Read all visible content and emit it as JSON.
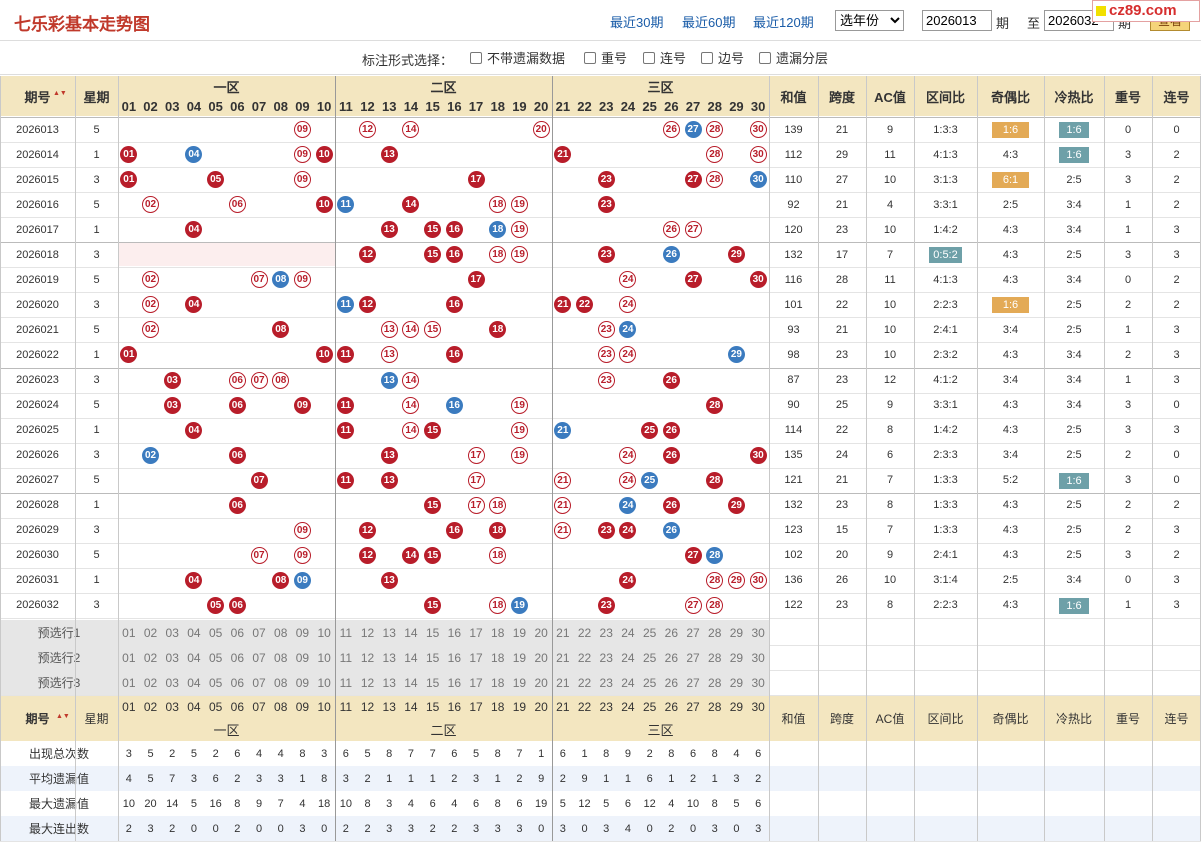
{
  "header": {
    "title": "七乐彩基本走势图",
    "links": [
      "最近30期",
      "最近60期",
      "最近120期"
    ],
    "year_select": "选年份",
    "from_period": "2026013",
    "from_unit": "期",
    "to_label": "至",
    "to_period": "2026032",
    "to_unit": "期",
    "query_button": "查看",
    "logo": "cz89.com"
  },
  "options": {
    "label": "标注形式选择：",
    "items": [
      "不带遗漏数据",
      "重号",
      "连号",
      "边号",
      "遗漏分层"
    ]
  },
  "zones": [
    "一区",
    "二区",
    "三区"
  ],
  "headers": {
    "period": "期号",
    "weekday": "星期",
    "sum": "和值",
    "span": "跨度",
    "ac": "AC值",
    "zone_ratio": "区间比",
    "odd_even": "奇偶比",
    "hot_cold": "冷热比",
    "repeat": "重号",
    "consecutive": "连号"
  },
  "numbers": [
    "01",
    "02",
    "03",
    "04",
    "05",
    "06",
    "07",
    "08",
    "09",
    "10",
    "11",
    "12",
    "13",
    "14",
    "15",
    "16",
    "17",
    "18",
    "19",
    "20",
    "21",
    "22",
    "23",
    "24",
    "25",
    "26",
    "27",
    "28",
    "29",
    "30"
  ],
  "rows": [
    {
      "p": "2026013",
      "w": "5",
      "red": [
        9,
        12,
        14,
        20,
        26,
        28,
        30
      ],
      "blue": [
        27
      ],
      "ring": [
        9,
        12,
        14,
        20,
        26,
        28,
        30
      ],
      "sum": "139",
      "span": "21",
      "ac": "9",
      "zr": "1:3:3",
      "oe": "1:6",
      "hc": "1:6",
      "rep": "0",
      "con": "0",
      "oe_hl": "orange",
      "hc_hl": "teal"
    },
    {
      "p": "2026014",
      "w": "1",
      "red": [
        1,
        9,
        10,
        13,
        21,
        28,
        30
      ],
      "blue": [
        4
      ],
      "ring": [
        9,
        28,
        30
      ],
      "sum": "112",
      "span": "29",
      "ac": "11",
      "zr": "4:1:3",
      "oe": "4:3",
      "hc": "1:6",
      "rep": "3",
      "con": "2",
      "hc_hl": "teal"
    },
    {
      "p": "2026015",
      "w": "3",
      "red": [
        1,
        5,
        9,
        17,
        23,
        27,
        28
      ],
      "blue": [
        30
      ],
      "ring": [
        9,
        28
      ],
      "sum": "110",
      "span": "27",
      "ac": "10",
      "zr": "3:1:3",
      "oe": "6:1",
      "hc": "2:5",
      "rep": "3",
      "con": "2",
      "oe_hl": "orange"
    },
    {
      "p": "2026016",
      "w": "5",
      "red": [
        2,
        6,
        10,
        14,
        18,
        19,
        23
      ],
      "blue": [
        11
      ],
      "ring": [
        2,
        6,
        18,
        19
      ],
      "sum": "92",
      "span": "21",
      "ac": "4",
      "zr": "3:3:1",
      "oe": "2:5",
      "hc": "3:4",
      "rep": "1",
      "con": "2"
    },
    {
      "p": "2026017",
      "w": "1",
      "red": [
        4,
        13,
        15,
        16,
        19,
        26,
        27
      ],
      "blue": [
        18
      ],
      "ring": [
        19,
        26,
        27
      ],
      "sum": "120",
      "span": "23",
      "ac": "10",
      "zr": "1:4:2",
      "oe": "4:3",
      "hc": "3:4",
      "rep": "1",
      "con": "3"
    },
    {
      "p": "2026018",
      "w": "3",
      "red": [
        12,
        15,
        16,
        18,
        19,
        23,
        29
      ],
      "blue": [
        26
      ],
      "ring": [
        18,
        19
      ],
      "sum": "132",
      "span": "17",
      "ac": "7",
      "zr": "0:5:2",
      "oe": "4:3",
      "hc": "2:5",
      "rep": "3",
      "con": "3",
      "zr_hl": "teal"
    },
    {
      "p": "2026019",
      "w": "5",
      "red": [
        2,
        7,
        9,
        17,
        24,
        27,
        30
      ],
      "blue": [
        8
      ],
      "ring": [
        2,
        7,
        9,
        24
      ],
      "sum": "116",
      "span": "28",
      "ac": "11",
      "zr": "4:1:3",
      "oe": "4:3",
      "hc": "3:4",
      "rep": "0",
      "con": "2"
    },
    {
      "p": "2026020",
      "w": "3",
      "red": [
        2,
        4,
        12,
        16,
        21,
        22,
        24
      ],
      "blue": [
        11
      ],
      "ring": [
        2,
        24
      ],
      "sum": "101",
      "span": "22",
      "ac": "10",
      "zr": "2:2:3",
      "oe": "1:6",
      "hc": "2:5",
      "rep": "2",
      "con": "2",
      "oe_hl": "orange"
    },
    {
      "p": "2026021",
      "w": "5",
      "red": [
        2,
        8,
        13,
        14,
        15,
        18,
        23
      ],
      "blue": [
        24
      ],
      "ring": [
        2,
        13,
        14,
        15,
        23
      ],
      "sum": "93",
      "span": "21",
      "ac": "10",
      "zr": "2:4:1",
      "oe": "3:4",
      "hc": "2:5",
      "rep": "1",
      "con": "3"
    },
    {
      "p": "2026022",
      "w": "1",
      "red": [
        1,
        10,
        11,
        13,
        16,
        23,
        24
      ],
      "blue": [
        29
      ],
      "ring": [
        13,
        23,
        24
      ],
      "sum": "98",
      "span": "23",
      "ac": "10",
      "zr": "2:3:2",
      "oe": "4:3",
      "hc": "3:4",
      "rep": "2",
      "con": "3"
    },
    {
      "p": "2026023",
      "w": "3",
      "red": [
        3,
        6,
        7,
        8,
        14,
        23,
        26
      ],
      "blue": [
        13
      ],
      "ring": [
        6,
        7,
        8,
        14,
        23
      ],
      "sum": "87",
      "span": "23",
      "ac": "12",
      "zr": "4:1:2",
      "oe": "3:4",
      "hc": "3:4",
      "rep": "1",
      "con": "3"
    },
    {
      "p": "2026024",
      "w": "5",
      "red": [
        3,
        6,
        9,
        11,
        14,
        19,
        28
      ],
      "blue": [
        16
      ],
      "ring": [
        14,
        19
      ],
      "sum": "90",
      "span": "25",
      "ac": "9",
      "zr": "3:3:1",
      "oe": "4:3",
      "hc": "3:4",
      "rep": "3",
      "con": "0"
    },
    {
      "p": "2026025",
      "w": "1",
      "red": [
        4,
        11,
        14,
        15,
        19,
        25,
        26
      ],
      "blue": [
        21
      ],
      "ring": [
        14,
        19
      ],
      "sum": "114",
      "span": "22",
      "ac": "8",
      "zr": "1:4:2",
      "oe": "4:3",
      "hc": "2:5",
      "rep": "3",
      "con": "3"
    },
    {
      "p": "2026026",
      "w": "3",
      "red": [
        6,
        13,
        17,
        19,
        24,
        26,
        30
      ],
      "blue": [
        2
      ],
      "ring": [
        17,
        19,
        24
      ],
      "sum": "135",
      "span": "24",
      "ac": "6",
      "zr": "2:3:3",
      "oe": "3:4",
      "hc": "2:5",
      "rep": "2",
      "con": "0"
    },
    {
      "p": "2026027",
      "w": "5",
      "red": [
        7,
        11,
        13,
        17,
        21,
        24,
        28
      ],
      "blue": [
        25
      ],
      "ring": [
        17,
        21,
        24
      ],
      "sum": "121",
      "span": "21",
      "ac": "7",
      "zr": "1:3:3",
      "oe": "5:2",
      "hc": "1:6",
      "rep": "3",
      "con": "0",
      "hc_hl": "teal"
    },
    {
      "p": "2026028",
      "w": "1",
      "red": [
        6,
        15,
        17,
        18,
        21,
        26,
        29
      ],
      "blue": [
        24
      ],
      "ring": [
        17,
        18,
        21
      ],
      "sum": "132",
      "span": "23",
      "ac": "8",
      "zr": "1:3:3",
      "oe": "4:3",
      "hc": "2:5",
      "rep": "2",
      "con": "2"
    },
    {
      "p": "2026029",
      "w": "3",
      "red": [
        9,
        12,
        16,
        18,
        21,
        23,
        24
      ],
      "blue": [
        26
      ],
      "ring": [
        9,
        21
      ],
      "sum": "123",
      "span": "15",
      "ac": "7",
      "zr": "1:3:3",
      "oe": "4:3",
      "hc": "2:5",
      "rep": "2",
      "con": "3"
    },
    {
      "p": "2026030",
      "w": "5",
      "red": [
        7,
        9,
        12,
        14,
        15,
        18,
        27
      ],
      "blue": [
        28
      ],
      "ring": [
        7,
        9,
        18
      ],
      "sum": "102",
      "span": "20",
      "ac": "9",
      "zr": "2:4:1",
      "oe": "4:3",
      "hc": "2:5",
      "rep": "3",
      "con": "2"
    },
    {
      "p": "2026031",
      "w": "1",
      "red": [
        4,
        8,
        13,
        24,
        28,
        29,
        30
      ],
      "blue": [
        9
      ],
      "ring": [
        28,
        29,
        30
      ],
      "sum": "136",
      "span": "26",
      "ac": "10",
      "zr": "3:1:4",
      "oe": "2:5",
      "hc": "3:4",
      "rep": "0",
      "con": "3"
    },
    {
      "p": "2026032",
      "w": "3",
      "red": [
        5,
        6,
        15,
        18,
        23,
        27,
        28
      ],
      "blue": [
        19
      ],
      "ring": [
        18,
        27,
        28
      ],
      "sum": "122",
      "span": "23",
      "ac": "8",
      "zr": "2:2:3",
      "oe": "4:3",
      "hc": "1:6",
      "rep": "1",
      "con": "3",
      "hc_hl": "teal"
    }
  ],
  "preselect": [
    "预选行1",
    "预选行2",
    "预选行3"
  ],
  "stats": [
    {
      "label": "出现总次数",
      "vals": [
        "3",
        "5",
        "2",
        "5",
        "2",
        "6",
        "4",
        "4",
        "8",
        "3",
        "6",
        "5",
        "8",
        "7",
        "7",
        "6",
        "5",
        "8",
        "7",
        "1",
        "6",
        "1",
        "8",
        "9",
        "2",
        "8",
        "6",
        "8",
        "4",
        "6"
      ]
    },
    {
      "label": "平均遗漏值",
      "vals": [
        "4",
        "5",
        "7",
        "3",
        "6",
        "2",
        "3",
        "3",
        "1",
        "8",
        "3",
        "2",
        "1",
        "1",
        "1",
        "2",
        "3",
        "1",
        "2",
        "9",
        "2",
        "9",
        "1",
        "1",
        "6",
        "1",
        "2",
        "1",
        "3",
        "2"
      ]
    },
    {
      "label": "最大遗漏值",
      "vals": [
        "10",
        "20",
        "14",
        "5",
        "16",
        "8",
        "9",
        "7",
        "4",
        "18",
        "10",
        "8",
        "3",
        "4",
        "6",
        "4",
        "6",
        "8",
        "6",
        "19",
        "5",
        "12",
        "5",
        "6",
        "12",
        "4",
        "10",
        "8",
        "5",
        "6"
      ]
    },
    {
      "label": "最大连出数",
      "vals": [
        "2",
        "3",
        "2",
        "0",
        "0",
        "2",
        "0",
        "0",
        "3",
        "0",
        "2",
        "2",
        "3",
        "3",
        "2",
        "2",
        "3",
        "3",
        "3",
        "0",
        "3",
        "0",
        "3",
        "4",
        "0",
        "2",
        "0",
        "3",
        "0",
        "3"
      ]
    }
  ],
  "colors": {
    "header_bg": "#f3e6c0",
    "red_ball": "#b81d2a",
    "blue_ball": "#3b7bbf",
    "orange_badge": "#e3aa56",
    "teal_badge": "#6ea0a8",
    "stripe": "#eef3fb"
  }
}
